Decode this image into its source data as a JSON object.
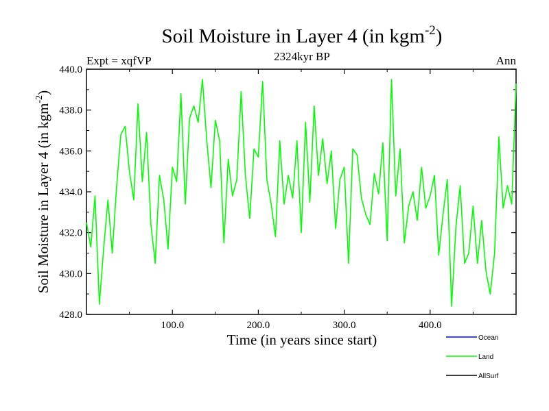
{
  "chart_data": {
    "type": "line",
    "title": "Soil Moisture in Layer 4 (in kgm",
    "title_sup": "-2",
    "title_close": ")",
    "subtitle": "2324kyr BP",
    "left_label": "Expt = xqfVP",
    "right_label": "Ann",
    "xlabel": "Time (in years since start)",
    "ylabel": "Soil Moisture in Layer 4 (in kgm",
    "ylabel_sup": "-2",
    "ylabel_close": ")",
    "xlim": [
      0,
      500
    ],
    "ylim": [
      428,
      440
    ],
    "xticks": [
      100,
      200,
      300,
      400
    ],
    "xtick_labels": [
      "100.0",
      "200.0",
      "300.0",
      "400.0"
    ],
    "yticks": [
      428,
      430,
      432,
      434,
      436,
      438,
      440
    ],
    "ytick_labels": [
      "428.0",
      "430.0",
      "432.0",
      "434.0",
      "436.0",
      "438.0",
      "440.0"
    ],
    "legend": [
      {
        "name": "Ocean",
        "color": "#0000ff"
      },
      {
        "name": "Land",
        "color": "#00ff00"
      },
      {
        "name": "AllSurf",
        "color": "#000000"
      }
    ],
    "series": [
      {
        "name": "Land",
        "color": "#00ff00",
        "x": [
          0,
          5,
          10,
          15,
          20,
          25,
          30,
          35,
          40,
          45,
          50,
          55,
          60,
          65,
          70,
          75,
          80,
          85,
          90,
          95,
          100,
          105,
          110,
          115,
          120,
          125,
          130,
          135,
          140,
          145,
          150,
          155,
          160,
          165,
          170,
          175,
          180,
          185,
          190,
          195,
          200,
          205,
          210,
          215,
          220,
          225,
          230,
          235,
          240,
          245,
          250,
          255,
          260,
          265,
          270,
          275,
          280,
          285,
          290,
          295,
          300,
          305,
          310,
          315,
          320,
          325,
          330,
          335,
          340,
          345,
          350,
          355,
          360,
          365,
          370,
          375,
          380,
          385,
          390,
          395,
          400,
          405,
          410,
          415,
          420,
          425,
          430,
          435,
          440,
          445,
          450,
          455,
          460,
          465,
          470,
          475,
          480,
          485,
          490,
          495,
          500
        ],
        "values": [
          432.5,
          431.3,
          433.8,
          428.5,
          431.2,
          433.6,
          431.0,
          434.2,
          436.8,
          437.2,
          435.0,
          433.6,
          438.3,
          434.5,
          436.9,
          432.4,
          430.5,
          434.8,
          433.6,
          431.2,
          435.2,
          434.5,
          438.8,
          433.4,
          437.6,
          438.2,
          437.4,
          439.5,
          436.5,
          434.2,
          437.5,
          436.5,
          431.5,
          435.6,
          433.8,
          434.6,
          438.9,
          434.8,
          432.7,
          436.1,
          435.7,
          439.4,
          434.6,
          433.4,
          431.8,
          436.5,
          433.4,
          434.8,
          433.7,
          436.5,
          432.0,
          437.4,
          433.5,
          438.2,
          434.8,
          436.6,
          434.4,
          436.0,
          432.2,
          434.6,
          435.2,
          430.5,
          436.1,
          435.8,
          433.7,
          432.9,
          432.4,
          434.9,
          433.9,
          436.4,
          431.6,
          439.5,
          433.8,
          436.1,
          431.5,
          433.3,
          434.0,
          432.6,
          435.2,
          433.2,
          433.8,
          434.8,
          430.9,
          432.9,
          434.6,
          428.4,
          432.3,
          434.3,
          430.5,
          431.0,
          433.3,
          430.5,
          432.6,
          430.1,
          429.0,
          431.0,
          436.7,
          433.2,
          434.3,
          433.4,
          439.3
        ]
      }
    ]
  }
}
